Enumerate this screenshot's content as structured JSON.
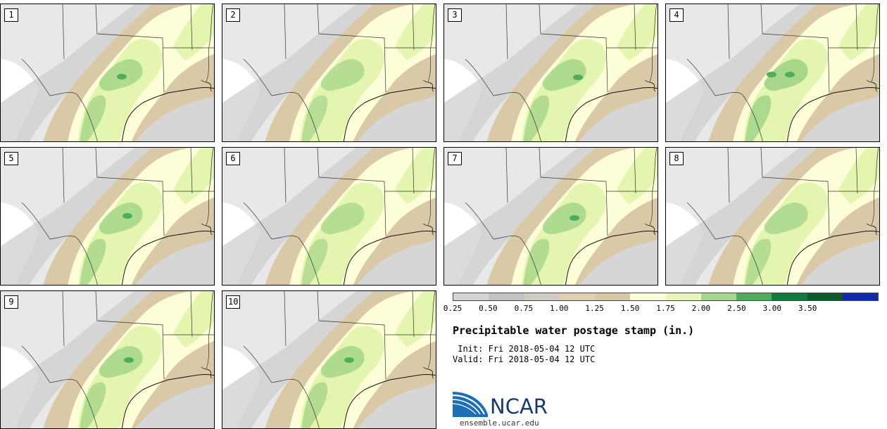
{
  "panels": [
    {
      "label": "1",
      "core": [
        [
          172,
          103
        ]
      ],
      "int": 1.0
    },
    {
      "label": "2",
      "core": [],
      "int": 0.9
    },
    {
      "label": "3",
      "core": [
        [
          190,
          104
        ]
      ],
      "int": 1.0
    },
    {
      "label": "4",
      "core": [
        [
          176,
          100
        ],
        [
          150,
          100
        ]
      ],
      "int": 1.15
    },
    {
      "label": "5",
      "core": [
        [
          180,
          97
        ]
      ],
      "int": 1.0
    },
    {
      "label": "6",
      "core": [],
      "int": 0.9
    },
    {
      "label": "7",
      "core": [
        [
          185,
          100
        ]
      ],
      "int": 1.0
    },
    {
      "label": "8",
      "core": [],
      "int": 0.95
    },
    {
      "label": "9",
      "core": [
        [
          182,
          98
        ]
      ],
      "int": 1.0
    },
    {
      "label": "10",
      "core": [
        [
          180,
          98
        ]
      ],
      "int": 1.0
    }
  ],
  "colorbar": {
    "colors": [
      "#d4d4d4",
      "#c4c4c4",
      "#d0ccc4",
      "#dfd0b2",
      "#d9c8a6",
      "#fdfdd8",
      "#e8f7b5",
      "#a6d68a",
      "#4eae5e",
      "#137a3f",
      "#0a5b2c",
      "#0f2ca8"
    ],
    "ticks": [
      "0.25",
      "0.50",
      "0.75",
      "1.00",
      "1.25",
      "1.50",
      "1.75",
      "2.00",
      "2.50",
      "3.00",
      "3.50"
    ]
  },
  "title": "Precipitable water postage stamp (in.)",
  "init_line": " Init: Fri 2018-05-04 12 UTC",
  "valid_line": "Valid: Fri 2018-05-04 12 UTC",
  "logo_text": "NCAR",
  "site": "ensemble.ucar.edu"
}
